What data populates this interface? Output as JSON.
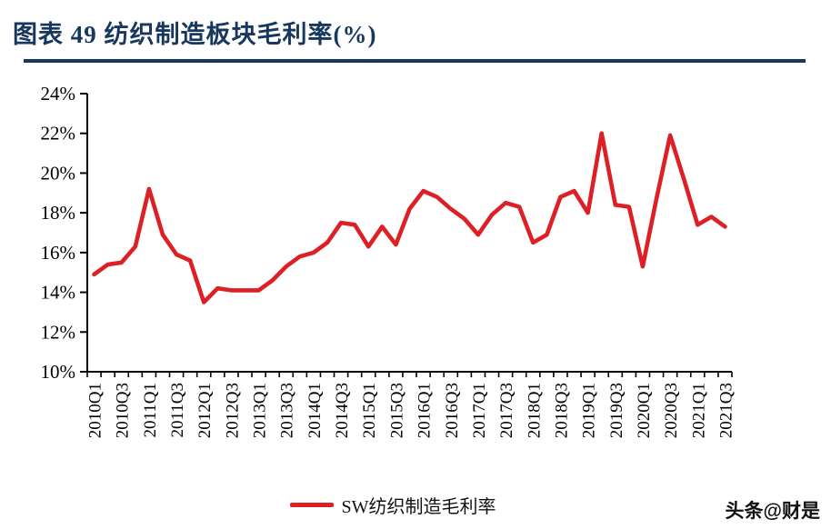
{
  "header": {
    "title": "图表 49  纺织制造板块毛利率(%)"
  },
  "legend": {
    "label": "SW纺织制造毛利率"
  },
  "watermark": "头条@财是",
  "colors": {
    "title_blue": "#17375e",
    "line_red": "#dd2026",
    "axis_black": "#000000"
  },
  "chart_data": {
    "type": "line",
    "title": "纺织制造板块毛利率(%)",
    "x": [
      "2010Q1",
      "2010Q2",
      "2010Q3",
      "2010Q4",
      "2011Q1",
      "2011Q2",
      "2011Q3",
      "2011Q4",
      "2012Q1",
      "2012Q2",
      "2012Q3",
      "2012Q4",
      "2013Q1",
      "2013Q2",
      "2013Q3",
      "2013Q4",
      "2014Q1",
      "2014Q2",
      "2014Q3",
      "2014Q4",
      "2015Q1",
      "2015Q2",
      "2015Q3",
      "2015Q4",
      "2016Q1",
      "2016Q2",
      "2016Q3",
      "2016Q4",
      "2017Q1",
      "2017Q2",
      "2017Q3",
      "2017Q4",
      "2018Q1",
      "2018Q2",
      "2018Q3",
      "2018Q4",
      "2019Q1",
      "2019Q2",
      "2019Q3",
      "2019Q4",
      "2020Q1",
      "2020Q2",
      "2020Q3",
      "2020Q4",
      "2021Q1",
      "2021Q2",
      "2021Q3"
    ],
    "series": [
      {
        "name": "SW纺织制造毛利率",
        "values": [
          14.9,
          15.4,
          15.5,
          16.3,
          19.2,
          16.9,
          15.9,
          15.6,
          13.5,
          14.2,
          14.1,
          14.1,
          14.1,
          14.6,
          15.3,
          15.8,
          16.0,
          16.5,
          17.5,
          17.4,
          16.3,
          17.3,
          16.4,
          18.2,
          19.1,
          18.8,
          18.2,
          17.7,
          16.9,
          17.9,
          18.5,
          18.3,
          16.5,
          16.9,
          18.8,
          19.1,
          18.0,
          22.0,
          18.4,
          18.3,
          15.3,
          18.7,
          21.9,
          19.7,
          17.4,
          17.8,
          17.3
        ]
      }
    ],
    "ylim": [
      10,
      24
    ],
    "y_tick_step": 2,
    "y_tick_labels": [
      "10%",
      "12%",
      "14%",
      "16%",
      "18%",
      "20%",
      "22%",
      "24%"
    ],
    "x_tick_every": 2,
    "x_tick_labels_shown": [
      "2010Q1",
      "2010Q3",
      "2011Q1",
      "2011Q3",
      "2012Q1",
      "2012Q3",
      "2013Q1",
      "2013Q3",
      "2014Q1",
      "2014Q3",
      "2015Q1",
      "2015Q3",
      "2016Q1",
      "2016Q3",
      "2017Q1",
      "2017Q3",
      "2018Q1",
      "2018Q3",
      "2019Q1",
      "2019Q3",
      "2020Q1",
      "2020Q3",
      "2021Q1",
      "2021Q3"
    ],
    "grid": false,
    "legend_position": "bottom-center"
  }
}
